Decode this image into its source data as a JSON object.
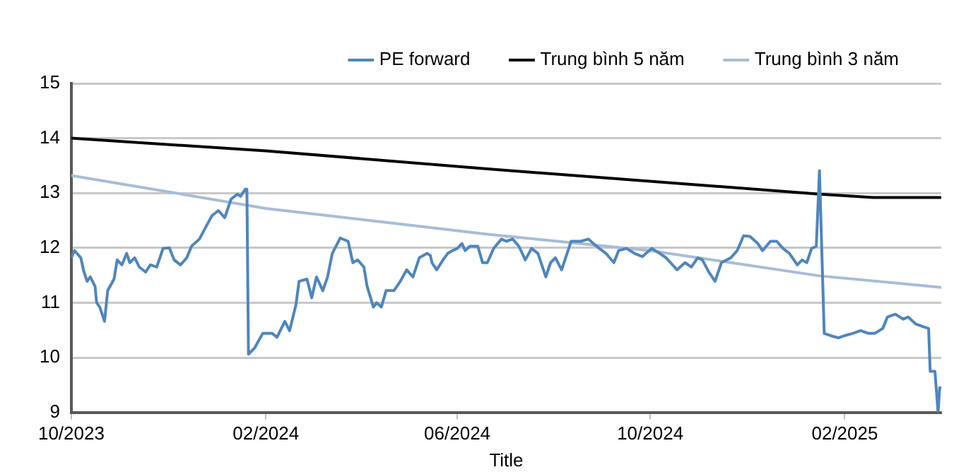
{
  "chart_data": {
    "type": "line",
    "xlabel": "Title",
    "legend": "top",
    "grid": "y",
    "marker": "none",
    "line_style": "solid",
    "xlim": [
      "2023-10-01",
      "2025-04-03"
    ],
    "xticks": [
      {
        "value": "2023-10-01",
        "label": "10/2023"
      },
      {
        "value": "2024-02-01",
        "label": "02/2024"
      },
      {
        "value": "2024-06-01",
        "label": "06/2024"
      },
      {
        "value": "2024-10-01",
        "label": "10/2024"
      },
      {
        "value": "2025-02-01",
        "label": "02/2025"
      }
    ],
    "ylim": [
      9,
      15
    ],
    "yticks": [
      9,
      10,
      11,
      12,
      13,
      14,
      15
    ],
    "series": [
      {
        "name": "PE forward",
        "color": "#4f86bd",
        "x": [
          "2023-10-01",
          "2023-10-03",
          "2023-10-07",
          "2023-10-09",
          "2023-10-11",
          "2023-10-13",
          "2023-10-16",
          "2023-10-17",
          "2023-10-19",
          "2023-10-22",
          "2023-10-24",
          "2023-10-28",
          "2023-10-30",
          "2023-11-02",
          "2023-11-05",
          "2023-11-07",
          "2023-11-10",
          "2023-11-13",
          "2023-11-17",
          "2023-11-20",
          "2023-11-24",
          "2023-11-28",
          "2023-12-02",
          "2023-12-05",
          "2023-12-09",
          "2023-12-13",
          "2023-12-16",
          "2023-12-21",
          "2023-12-25",
          "2023-12-29",
          "2024-01-02",
          "2024-01-06",
          "2024-01-10",
          "2024-01-14",
          "2024-01-16",
          "2024-01-19",
          "2024-01-20",
          "2024-01-21",
          "2024-01-25",
          "2024-01-30",
          "2024-02-05",
          "2024-02-08",
          "2024-02-13",
          "2024-02-16",
          "2024-02-20",
          "2024-02-22",
          "2024-02-27",
          "2024-03-01",
          "2024-03-04",
          "2024-03-08",
          "2024-03-11",
          "2024-03-14",
          "2024-03-19",
          "2024-03-24",
          "2024-03-27",
          "2024-03-30",
          "2024-04-03",
          "2024-04-05",
          "2024-04-09",
          "2024-04-11",
          "2024-04-14",
          "2024-04-17",
          "2024-04-22",
          "2024-04-26",
          "2024-04-30",
          "2024-05-04",
          "2024-05-08",
          "2024-05-13",
          "2024-05-15",
          "2024-05-16",
          "2024-05-19",
          "2024-05-23",
          "2024-05-26",
          "2024-05-29",
          "2024-06-01",
          "2024-06-04",
          "2024-06-06",
          "2024-06-09",
          "2024-06-14",
          "2024-06-17",
          "2024-06-20",
          "2024-06-24",
          "2024-06-29",
          "2024-07-02",
          "2024-07-06",
          "2024-07-10",
          "2024-07-14",
          "2024-07-18",
          "2024-07-22",
          "2024-07-27",
          "2024-07-30",
          "2024-08-02",
          "2024-08-06",
          "2024-08-12",
          "2024-08-18",
          "2024-08-23",
          "2024-08-28",
          "2024-09-03",
          "2024-09-08",
          "2024-09-11",
          "2024-09-16",
          "2024-09-21",
          "2024-09-26",
          "2024-10-02",
          "2024-10-07",
          "2024-10-11",
          "2024-10-18",
          "2024-10-23",
          "2024-10-27",
          "2024-10-31",
          "2024-11-03",
          "2024-11-07",
          "2024-11-11",
          "2024-11-15",
          "2024-11-21",
          "2024-11-25",
          "2024-11-29",
          "2024-12-03",
          "2024-12-08",
          "2024-12-11",
          "2024-12-16",
          "2024-12-20",
          "2024-12-24",
          "2024-12-28",
          "2025-01-02",
          "2025-01-05",
          "2025-01-08",
          "2025-01-11",
          "2025-01-14",
          "2025-01-16",
          "2025-01-19",
          "2025-01-23",
          "2025-01-28",
          "2025-02-01",
          "2025-02-06",
          "2025-02-11",
          "2025-02-16",
          "2025-02-20",
          "2025-02-25",
          "2025-02-28",
          "2025-03-05",
          "2025-03-10",
          "2025-03-13",
          "2025-03-18",
          "2025-03-22",
          "2025-03-26",
          "2025-03-27",
          "2025-03-30",
          "2025-04-01",
          "2025-04-02",
          "2025-04-03"
        ],
        "values": [
          11.82,
          11.95,
          11.82,
          11.56,
          11.39,
          11.47,
          11.3,
          11.0,
          10.92,
          10.66,
          11.22,
          11.43,
          11.78,
          11.69,
          11.9,
          11.73,
          11.82,
          11.65,
          11.56,
          11.69,
          11.65,
          11.99,
          12.0,
          11.78,
          11.69,
          11.82,
          12.03,
          12.16,
          12.38,
          12.59,
          12.68,
          12.55,
          12.89,
          12.98,
          12.94,
          13.07,
          13.07,
          10.06,
          10.18,
          10.44,
          10.44,
          10.37,
          10.66,
          10.49,
          10.96,
          11.39,
          11.43,
          11.09,
          11.47,
          11.22,
          11.47,
          11.9,
          12.18,
          12.12,
          11.73,
          11.78,
          11.65,
          11.3,
          10.92,
          11.0,
          10.92,
          11.22,
          11.22,
          11.39,
          11.6,
          11.47,
          11.82,
          11.9,
          11.86,
          11.73,
          11.6,
          11.78,
          11.9,
          11.95,
          11.99,
          12.08,
          11.95,
          12.03,
          12.03,
          11.73,
          11.73,
          11.99,
          12.16,
          12.12,
          12.16,
          12.03,
          11.78,
          11.99,
          11.9,
          11.47,
          11.73,
          11.82,
          11.6,
          12.12,
          12.12,
          12.16,
          12.03,
          11.9,
          11.73,
          11.95,
          11.99,
          11.9,
          11.84,
          11.99,
          11.9,
          11.82,
          11.6,
          11.73,
          11.65,
          11.82,
          11.78,
          11.56,
          11.39,
          11.73,
          11.82,
          11.95,
          12.22,
          12.21,
          12.08,
          11.95,
          12.12,
          12.12,
          11.99,
          11.9,
          11.69,
          11.78,
          11.73,
          11.99,
          12.03,
          13.41,
          10.44,
          10.4,
          10.36,
          10.4,
          10.44,
          10.49,
          10.44,
          10.44,
          10.53,
          10.74,
          10.79,
          10.7,
          10.74,
          10.61,
          10.57,
          10.53,
          9.75,
          9.75,
          9.0,
          9.45,
          9.45
        ]
      },
      {
        "name": "Trung bình 5 năm",
        "color": "#000000",
        "x": [
          "2023-10-01",
          "2024-02-01",
          "2024-06-20",
          "2025-01-16",
          "2025-02-19",
          "2025-04-03"
        ],
        "values": [
          14.0,
          13.77,
          13.44,
          12.98,
          12.92,
          12.92
        ]
      },
      {
        "name": "Trung bình 3 năm",
        "color": "#a6bdd7",
        "x": [
          "2023-10-01",
          "2024-02-01",
          "2024-06-20",
          "2024-10-01",
          "2025-01-16",
          "2025-04-03"
        ],
        "values": [
          13.32,
          12.72,
          12.25,
          11.95,
          11.49,
          11.28
        ]
      }
    ]
  }
}
